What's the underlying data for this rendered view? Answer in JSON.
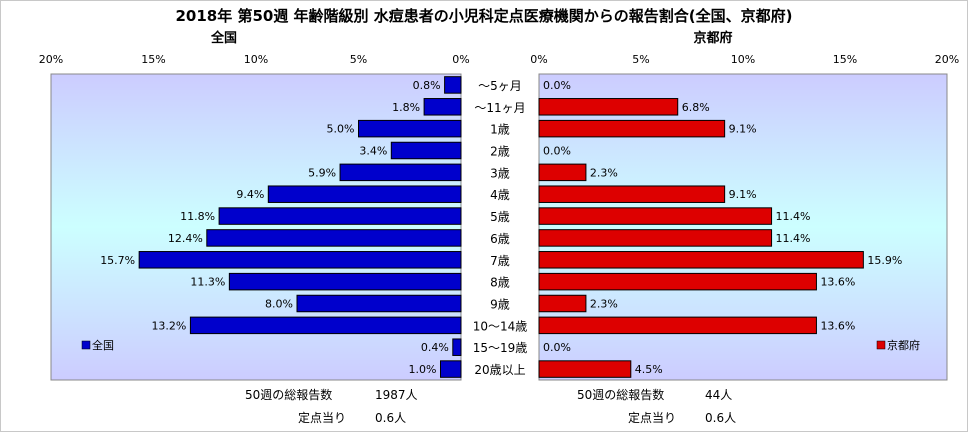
{
  "chart_data": {
    "type": "bar",
    "title": "2018年 第50週 年齢階級別 水痘患者の小児科定点医療機関からの報告割合(全国、京都府)",
    "categories": [
      "～5ヶ月",
      "～11ヶ月",
      "1歳",
      "2歳",
      "3歳",
      "4歳",
      "5歳",
      "6歳",
      "7歳",
      "8歳",
      "9歳",
      "10～14歳",
      "15～19歳",
      "20歳以上"
    ],
    "xlim": [
      0,
      20
    ],
    "x_ticks": [
      "0%",
      "5%",
      "10%",
      "15%",
      "20%"
    ],
    "grid": false,
    "series": [
      {
        "name": "全国",
        "panel_label": "全国",
        "color": "#0000cc",
        "legend_position": "bottom-left",
        "values": [
          0.8,
          1.8,
          5.0,
          3.4,
          5.9,
          9.4,
          11.8,
          12.4,
          15.7,
          11.3,
          8.0,
          13.2,
          0.4,
          1.0
        ],
        "labels": [
          "0.8%",
          "1.8%",
          "5.0%",
          "3.4%",
          "5.9%",
          "9.4%",
          "11.8%",
          "12.4%",
          "15.7%",
          "11.3%",
          "8.0%",
          "13.2%",
          "0.4%",
          "1.0%"
        ]
      },
      {
        "name": "京都府",
        "panel_label": "京都府",
        "color": "#dd0000",
        "legend_position": "bottom-right",
        "values": [
          0.0,
          6.8,
          9.1,
          0.0,
          2.3,
          9.1,
          11.4,
          11.4,
          15.9,
          13.6,
          2.3,
          13.6,
          0.0,
          4.5
        ],
        "labels": [
          "0.0%",
          "6.8%",
          "9.1%",
          "0.0%",
          "2.3%",
          "9.1%",
          "11.4%",
          "11.4%",
          "15.9%",
          "13.6%",
          "2.3%",
          "13.6%",
          "0.0%",
          "4.5%"
        ]
      }
    ]
  },
  "footer": {
    "national": {
      "reports_label": "50週の総報告数",
      "reports_value": "1987人",
      "per_site_label": "定点当り",
      "per_site_value": "0.6人"
    },
    "kyoto": {
      "reports_label": "50週の総報告数",
      "reports_value": "44人",
      "per_site_label": "定点当り",
      "per_site_value": "0.6人"
    }
  },
  "colors": {
    "plot_bg_edge": "#ccccff",
    "plot_bg_center": "#ccffff"
  }
}
